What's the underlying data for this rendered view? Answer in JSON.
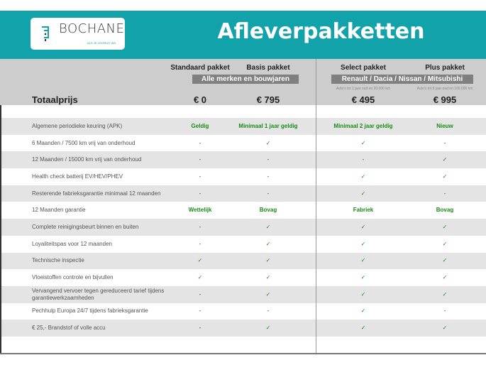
{
  "header": {
    "brand": "BOCHANE",
    "tagline": "ALS JE VOORUIT WIL",
    "title": "Afleverpakketten",
    "accent": "#12a2aa"
  },
  "packages": [
    {
      "name": "Standaard pakket",
      "price": "€ 0",
      "note": ""
    },
    {
      "name": "Basis pakket",
      "price": "€ 795",
      "note": ""
    },
    {
      "name": "Select pakket",
      "price": "€ 495",
      "note": "Auto's tot 1 jaar oud en 20.000 km"
    },
    {
      "name": "Plus pakket",
      "price": "€ 995",
      "note": "Auto's tot 5 jaar oud en 100.000 km"
    }
  ],
  "groups": {
    "left": "Alle merken en bouwjaren",
    "right": "Renault / Dacia / Nissan / Mitsubishi"
  },
  "total_label": "Totaalprijs",
  "rows": [
    {
      "label": "Algemene periodieke keuring (APK)",
      "values": [
        "Geldig",
        "Minimaal 1 jaar geldig",
        "Minimaal 2 jaar geldig",
        "Nieuw"
      ]
    },
    {
      "label": "6 Maanden / 7500 km vrij van onderhoud",
      "values": [
        "-",
        "✓",
        "✓",
        "-"
      ]
    },
    {
      "label": "12 Maanden / 15000 km vrij van onderhoud",
      "values": [
        "-",
        "-",
        "-",
        "✓"
      ]
    },
    {
      "label": "Health check batterij EV/HEV/PHEV",
      "values": [
        "-",
        "-",
        "✓",
        "✓"
      ]
    },
    {
      "label": "Resterende fabrieksgarantie minimaal 12 maanden",
      "values": [
        "-",
        "-",
        "✓",
        "-"
      ]
    },
    {
      "label": "12 Maanden  garantie",
      "values": [
        "Wettelijk",
        "Bovag",
        "Fabriek",
        "Bovag"
      ]
    },
    {
      "label": "Complete reinigingsbeurt binnen en buiten",
      "values": [
        "-",
        "✓",
        "✓",
        "✓"
      ]
    },
    {
      "label": "Loyaliteitspas voor 12 maanden",
      "values": [
        "-",
        "✓",
        "✓",
        "✓"
      ]
    },
    {
      "label": "Technische inspectie",
      "values": [
        "✓",
        "✓",
        "✓",
        "✓"
      ]
    },
    {
      "label": "Vloeistoffen controle en bijvullen",
      "values": [
        "✓",
        "✓",
        "✓",
        "✓"
      ]
    },
    {
      "label": "Vervangend vervoer tegen gereduceerd tarief tijdens garantiewerkzaamheden",
      "values": [
        "-",
        "✓",
        "✓",
        "✓"
      ]
    },
    {
      "label": "Pechhulp Europa 24/7 tijdens fabrieksgarantie",
      "values": [
        "-",
        "-",
        "✓",
        "-"
      ]
    },
    {
      "label": "€ 25,- Brandstof of  volle accu",
      "values": [
        "-",
        "✓",
        "✓",
        "✓"
      ]
    }
  ]
}
